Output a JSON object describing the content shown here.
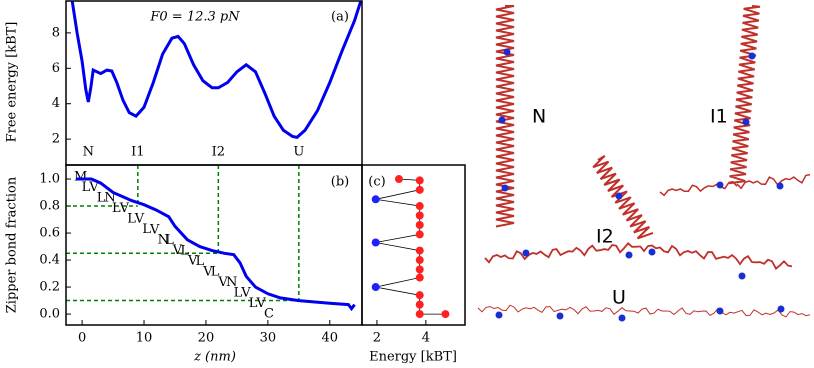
{
  "chart_data": [
    {
      "type": "line",
      "panel_label": "(a)",
      "annotation": "F0 = 12.3 pN",
      "y_label": "Free energy [kBT]",
      "x": [
        -1.6,
        -0.8,
        0,
        0.6,
        1.0,
        1.4,
        1.8,
        2.4,
        3.0,
        4.0,
        4.8,
        5.6,
        6.6,
        7.6,
        8.7,
        10,
        11.5,
        13,
        14.5,
        15.5,
        16.5,
        18,
        19.5,
        21,
        22,
        23.5,
        25,
        26.5,
        28,
        29.5,
        31,
        32.5,
        34,
        34.7,
        36,
        38,
        40,
        42,
        44,
        45
      ],
      "series": [
        {
          "color": "#0000ee",
          "values": [
            9.8,
            8.0,
            6.4,
            4.8,
            4.1,
            4.9,
            5.9,
            5.8,
            5.7,
            5.9,
            5.85,
            5.2,
            4.2,
            3.5,
            3.3,
            3.8,
            5.2,
            6.8,
            7.7,
            7.8,
            7.4,
            6.2,
            5.3,
            4.9,
            4.9,
            5.2,
            5.8,
            6.2,
            5.8,
            4.6,
            3.3,
            2.5,
            2.15,
            2.1,
            2.5,
            3.6,
            5.2,
            7.0,
            8.7,
            9.8
          ]
        }
      ],
      "xlim": [
        -2.6,
        45.2
      ],
      "ylim": [
        0.54,
        9.8
      ],
      "yticks": [
        2,
        4,
        6,
        8
      ],
      "state_labels": [
        {
          "label": "N",
          "z": 1
        },
        {
          "label": "I1",
          "z": 9
        },
        {
          "label": "I2",
          "z": 22
        },
        {
          "label": "U",
          "z": 35
        }
      ]
    },
    {
      "type": "line",
      "panel_label": "(b)",
      "x_label": "z (nm)",
      "y_label": "Zipper bond fraction",
      "x": [
        -1,
        1.5,
        3,
        5,
        8,
        10,
        12,
        14,
        15,
        17,
        19,
        21,
        23,
        24.5,
        25.5,
        26.5,
        28,
        30,
        32,
        35,
        40,
        43,
        43.5,
        44
      ],
      "series": [
        {
          "color": "#0000ee",
          "values": [
            1.0,
            1.0,
            0.97,
            0.9,
            0.84,
            0.81,
            0.77,
            0.72,
            0.65,
            0.55,
            0.5,
            0.47,
            0.45,
            0.44,
            0.38,
            0.28,
            0.2,
            0.15,
            0.12,
            0.1,
            0.08,
            0.07,
            0.04,
            0.07
          ]
        }
      ],
      "xlim": [
        -2.6,
        45.2
      ],
      "ylim": [
        -0.081,
        1.104
      ],
      "xticks": [
        0,
        10,
        20,
        30,
        40
      ],
      "yticks": [
        {
          "value": 0,
          "label": "0.0"
        },
        0.2,
        0.4,
        0.6,
        0.8,
        {
          "value": 1,
          "label": "1.0"
        }
      ],
      "guides": [
        {
          "z": 9,
          "fraction": 0.8
        },
        {
          "z": 22,
          "fraction": 0.45
        },
        {
          "z": 35,
          "fraction": 0.1
        }
      ],
      "guide_color": "#008000",
      "sequence": [
        "M",
        "L",
        "V",
        "L",
        "N",
        "L",
        "V",
        "L",
        "V",
        "L",
        "V",
        "N",
        "L",
        "V",
        "L",
        "V",
        "L",
        "V",
        "L",
        "V",
        "N",
        "L",
        "V",
        "L",
        "V",
        "C"
      ],
      "sequence_color": "#ff2020",
      "highlight": "N",
      "highlight_color": "#2020ff"
    },
    {
      "type": "scatter",
      "panel_label": "(c)",
      "x_label": "Energy [kBT]",
      "x": [
        2.9,
        3.75,
        3.75,
        1.95,
        3.75,
        3.75,
        3.75,
        3.75,
        1.95,
        3.75,
        3.75,
        3.75,
        3.75,
        1.95,
        3.75,
        3.75,
        3.75,
        4.8
      ],
      "values": [
        1.0,
        0.99,
        0.92,
        0.85,
        0.8,
        0.73,
        0.66,
        0.59,
        0.53,
        0.47,
        0.4,
        0.33,
        0.27,
        0.2,
        0.14,
        0.07,
        0.0,
        0.0
      ],
      "colors": [
        "#ff2020",
        "#ff2020",
        "#ff2020",
        "#2020ff",
        "#ff2020",
        "#ff2020",
        "#ff2020",
        "#ff2020",
        "#2020ff",
        "#ff2020",
        "#ff2020",
        "#ff2020",
        "#ff2020",
        "#2020ff",
        "#ff2020",
        "#ff2020",
        "#ff2020",
        "#ff2020"
      ],
      "line_color": "#000000",
      "xlim": [
        1.39,
        5.6
      ],
      "ylim": [
        -0.081,
        1.104
      ],
      "xticks": [
        2,
        4
      ]
    }
  ],
  "structure_labels": [
    "N",
    "I1",
    "I2",
    "U"
  ]
}
